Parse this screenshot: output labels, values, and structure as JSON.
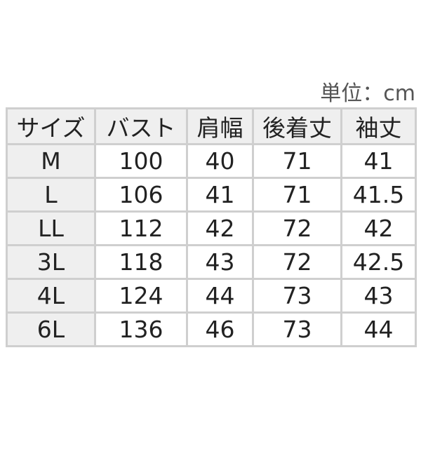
{
  "unit_label": "単位：cm",
  "table": {
    "headers": [
      "サイズ",
      "バスト",
      "肩幅",
      "後着丈",
      "袖丈"
    ],
    "rows": [
      [
        "M",
        "100",
        "40",
        "71",
        "41"
      ],
      [
        "L",
        "106",
        "41",
        "71",
        "41.5"
      ],
      [
        "LL",
        "112",
        "42",
        "72",
        "42"
      ],
      [
        "3L",
        "118",
        "43",
        "72",
        "42.5"
      ],
      [
        "4L",
        "124",
        "44",
        "73",
        "43"
      ],
      [
        "6L",
        "136",
        "46",
        "73",
        "44"
      ]
    ]
  }
}
